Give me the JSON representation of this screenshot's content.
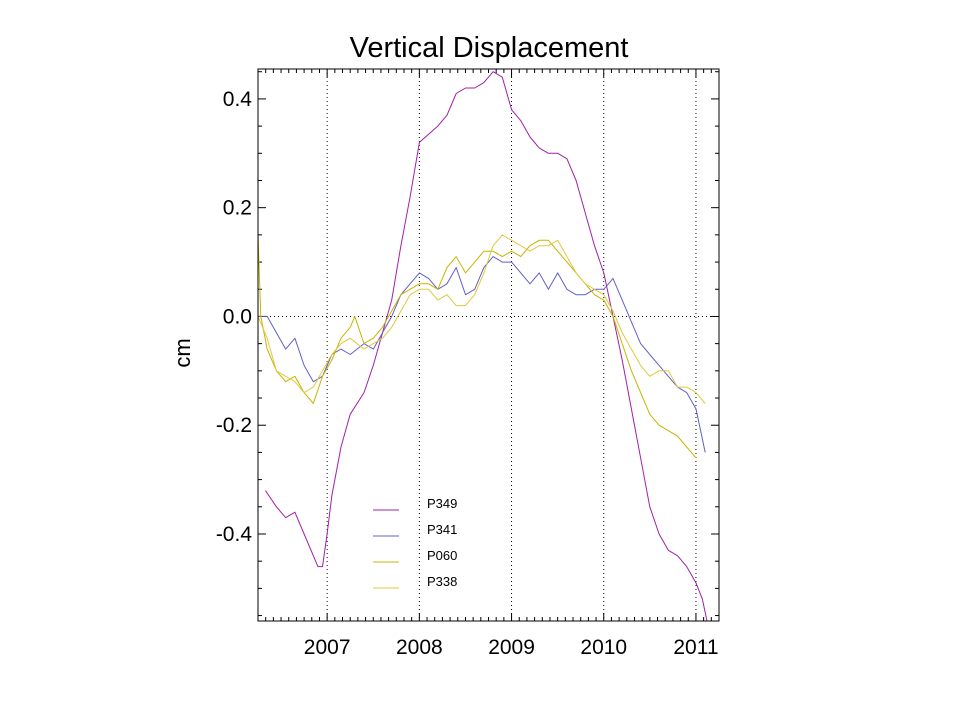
{
  "chart_data": {
    "type": "line",
    "title": "Vertical Displacement",
    "xlabel": "",
    "ylabel": "cm",
    "xlim": [
      2006.25,
      2011.25
    ],
    "ylim": [
      -0.56,
      0.455
    ],
    "x_ticks": [
      2007,
      2008,
      2009,
      2010,
      2011
    ],
    "y_ticks": [
      0.4,
      0.2,
      0.0,
      -0.2,
      -0.4
    ],
    "y_tick_labels": [
      "0.4",
      "0.2",
      "0.0",
      "-0.2",
      "-0.4"
    ],
    "grid": true,
    "legend_position": "bottom-left",
    "series": [
      {
        "name": "P349",
        "color": "#a020a8",
        "points": [
          [
            2006.33,
            -0.32
          ],
          [
            2006.45,
            -0.35
          ],
          [
            2006.55,
            -0.37
          ],
          [
            2006.65,
            -0.36
          ],
          [
            2006.75,
            -0.4
          ],
          [
            2006.85,
            -0.44
          ],
          [
            2006.9,
            -0.46
          ],
          [
            2006.95,
            -0.46
          ],
          [
            2007.0,
            -0.4
          ],
          [
            2007.05,
            -0.33
          ],
          [
            2007.15,
            -0.24
          ],
          [
            2007.25,
            -0.18
          ],
          [
            2007.4,
            -0.14
          ],
          [
            2007.5,
            -0.09
          ],
          [
            2007.6,
            -0.03
          ],
          [
            2007.7,
            0.03
          ],
          [
            2007.8,
            0.13
          ],
          [
            2007.9,
            0.22
          ],
          [
            2008.0,
            0.32
          ],
          [
            2008.2,
            0.35
          ],
          [
            2008.3,
            0.37
          ],
          [
            2008.4,
            0.41
          ],
          [
            2008.5,
            0.42
          ],
          [
            2008.6,
            0.42
          ],
          [
            2008.7,
            0.43
          ],
          [
            2008.8,
            0.45
          ],
          [
            2008.9,
            0.44
          ],
          [
            2009.0,
            0.38
          ],
          [
            2009.1,
            0.36
          ],
          [
            2009.2,
            0.33
          ],
          [
            2009.3,
            0.31
          ],
          [
            2009.4,
            0.3
          ],
          [
            2009.5,
            0.3
          ],
          [
            2009.6,
            0.29
          ],
          [
            2009.7,
            0.25
          ],
          [
            2009.8,
            0.19
          ],
          [
            2009.9,
            0.13
          ],
          [
            2010.0,
            0.08
          ],
          [
            2010.1,
            0.0
          ],
          [
            2010.2,
            -0.08
          ],
          [
            2010.3,
            -0.17
          ],
          [
            2010.4,
            -0.26
          ],
          [
            2010.5,
            -0.35
          ],
          [
            2010.6,
            -0.4
          ],
          [
            2010.7,
            -0.43
          ],
          [
            2010.8,
            -0.44
          ],
          [
            2010.9,
            -0.46
          ],
          [
            2011.0,
            -0.49
          ],
          [
            2011.07,
            -0.52
          ],
          [
            2011.12,
            -0.56
          ]
        ]
      },
      {
        "name": "P341",
        "color": "#6060c8",
        "points": [
          [
            2006.25,
            0.0
          ],
          [
            2006.35,
            0.0
          ],
          [
            2006.45,
            -0.03
          ],
          [
            2006.55,
            -0.06
          ],
          [
            2006.65,
            -0.04
          ],
          [
            2006.75,
            -0.09
          ],
          [
            2006.85,
            -0.12
          ],
          [
            2006.95,
            -0.11
          ],
          [
            2007.05,
            -0.07
          ],
          [
            2007.15,
            -0.06
          ],
          [
            2007.25,
            -0.07
          ],
          [
            2007.4,
            -0.05
          ],
          [
            2007.5,
            -0.06
          ],
          [
            2007.6,
            -0.03
          ],
          [
            2007.7,
            0.0
          ],
          [
            2007.8,
            0.04
          ],
          [
            2007.9,
            0.06
          ],
          [
            2008.0,
            0.08
          ],
          [
            2008.1,
            0.07
          ],
          [
            2008.2,
            0.05
          ],
          [
            2008.3,
            0.06
          ],
          [
            2008.4,
            0.09
          ],
          [
            2008.5,
            0.04
          ],
          [
            2008.6,
            0.05
          ],
          [
            2008.7,
            0.09
          ],
          [
            2008.8,
            0.11
          ],
          [
            2008.9,
            0.1
          ],
          [
            2009.0,
            0.1
          ],
          [
            2009.1,
            0.08
          ],
          [
            2009.2,
            0.06
          ],
          [
            2009.3,
            0.08
          ],
          [
            2009.4,
            0.05
          ],
          [
            2009.5,
            0.08
          ],
          [
            2009.6,
            0.05
          ],
          [
            2009.7,
            0.04
          ],
          [
            2009.8,
            0.04
          ],
          [
            2009.9,
            0.05
          ],
          [
            2010.0,
            0.05
          ],
          [
            2010.1,
            0.07
          ],
          [
            2010.2,
            0.03
          ],
          [
            2010.3,
            -0.01
          ],
          [
            2010.4,
            -0.05
          ],
          [
            2010.5,
            -0.07
          ],
          [
            2010.6,
            -0.09
          ],
          [
            2010.7,
            -0.11
          ],
          [
            2010.8,
            -0.13
          ],
          [
            2010.9,
            -0.14
          ],
          [
            2011.0,
            -0.17
          ],
          [
            2011.1,
            -0.25
          ]
        ]
      },
      {
        "name": "P060",
        "color": "#c8b400",
        "points": [
          [
            2006.25,
            0.15
          ],
          [
            2006.28,
            0.0
          ],
          [
            2006.35,
            -0.06
          ],
          [
            2006.45,
            -0.1
          ],
          [
            2006.55,
            -0.12
          ],
          [
            2006.65,
            -0.11
          ],
          [
            2006.75,
            -0.14
          ],
          [
            2006.85,
            -0.16
          ],
          [
            2006.95,
            -0.11
          ],
          [
            2007.05,
            -0.08
          ],
          [
            2007.15,
            -0.04
          ],
          [
            2007.25,
            -0.02
          ],
          [
            2007.3,
            0.0
          ],
          [
            2007.4,
            -0.05
          ],
          [
            2007.5,
            -0.04
          ],
          [
            2007.6,
            -0.02
          ],
          [
            2007.7,
            0.01
          ],
          [
            2007.8,
            0.04
          ],
          [
            2007.9,
            0.05
          ],
          [
            2008.0,
            0.06
          ],
          [
            2008.1,
            0.06
          ],
          [
            2008.2,
            0.05
          ],
          [
            2008.3,
            0.09
          ],
          [
            2008.4,
            0.11
          ],
          [
            2008.5,
            0.08
          ],
          [
            2008.6,
            0.1
          ],
          [
            2008.7,
            0.12
          ],
          [
            2008.8,
            0.12
          ],
          [
            2008.9,
            0.11
          ],
          [
            2009.0,
            0.12
          ],
          [
            2009.1,
            0.11
          ],
          [
            2009.2,
            0.13
          ],
          [
            2009.3,
            0.14
          ],
          [
            2009.4,
            0.14
          ],
          [
            2009.5,
            0.12
          ],
          [
            2009.6,
            0.1
          ],
          [
            2009.7,
            0.08
          ],
          [
            2009.8,
            0.06
          ],
          [
            2009.9,
            0.04
          ],
          [
            2010.0,
            0.03
          ],
          [
            2010.1,
            0.0
          ],
          [
            2010.2,
            -0.05
          ],
          [
            2010.3,
            -0.1
          ],
          [
            2010.4,
            -0.14
          ],
          [
            2010.5,
            -0.18
          ],
          [
            2010.6,
            -0.2
          ],
          [
            2010.7,
            -0.21
          ],
          [
            2010.8,
            -0.22
          ],
          [
            2010.9,
            -0.24
          ],
          [
            2011.0,
            -0.26
          ]
        ]
      },
      {
        "name": "P338",
        "color": "#e0c840",
        "points": [
          [
            2006.25,
            0.0
          ],
          [
            2006.35,
            -0.04
          ],
          [
            2006.45,
            -0.1
          ],
          [
            2006.55,
            -0.11
          ],
          [
            2006.65,
            -0.12
          ],
          [
            2006.75,
            -0.14
          ],
          [
            2006.85,
            -0.13
          ],
          [
            2006.95,
            -0.1
          ],
          [
            2007.05,
            -0.07
          ],
          [
            2007.15,
            -0.05
          ],
          [
            2007.25,
            -0.04
          ],
          [
            2007.4,
            -0.06
          ],
          [
            2007.5,
            -0.05
          ],
          [
            2007.6,
            -0.04
          ],
          [
            2007.7,
            -0.02
          ],
          [
            2007.8,
            0.01
          ],
          [
            2007.9,
            0.04
          ],
          [
            2008.0,
            0.05
          ],
          [
            2008.1,
            0.05
          ],
          [
            2008.2,
            0.03
          ],
          [
            2008.3,
            0.04
          ],
          [
            2008.4,
            0.02
          ],
          [
            2008.5,
            0.02
          ],
          [
            2008.6,
            0.04
          ],
          [
            2008.7,
            0.08
          ],
          [
            2008.8,
            0.13
          ],
          [
            2008.9,
            0.15
          ],
          [
            2009.0,
            0.14
          ],
          [
            2009.1,
            0.13
          ],
          [
            2009.2,
            0.12
          ],
          [
            2009.3,
            0.13
          ],
          [
            2009.4,
            0.13
          ],
          [
            2009.5,
            0.14
          ],
          [
            2009.6,
            0.11
          ],
          [
            2009.7,
            0.08
          ],
          [
            2009.8,
            0.06
          ],
          [
            2009.9,
            0.05
          ],
          [
            2010.0,
            0.04
          ],
          [
            2010.1,
            0.01
          ],
          [
            2010.2,
            -0.03
          ],
          [
            2010.3,
            -0.06
          ],
          [
            2010.4,
            -0.09
          ],
          [
            2010.5,
            -0.11
          ],
          [
            2010.6,
            -0.1
          ],
          [
            2010.7,
            -0.1
          ],
          [
            2010.8,
            -0.13
          ],
          [
            2010.9,
            -0.13
          ],
          [
            2011.0,
            -0.14
          ],
          [
            2011.1,
            -0.16
          ]
        ]
      }
    ]
  }
}
